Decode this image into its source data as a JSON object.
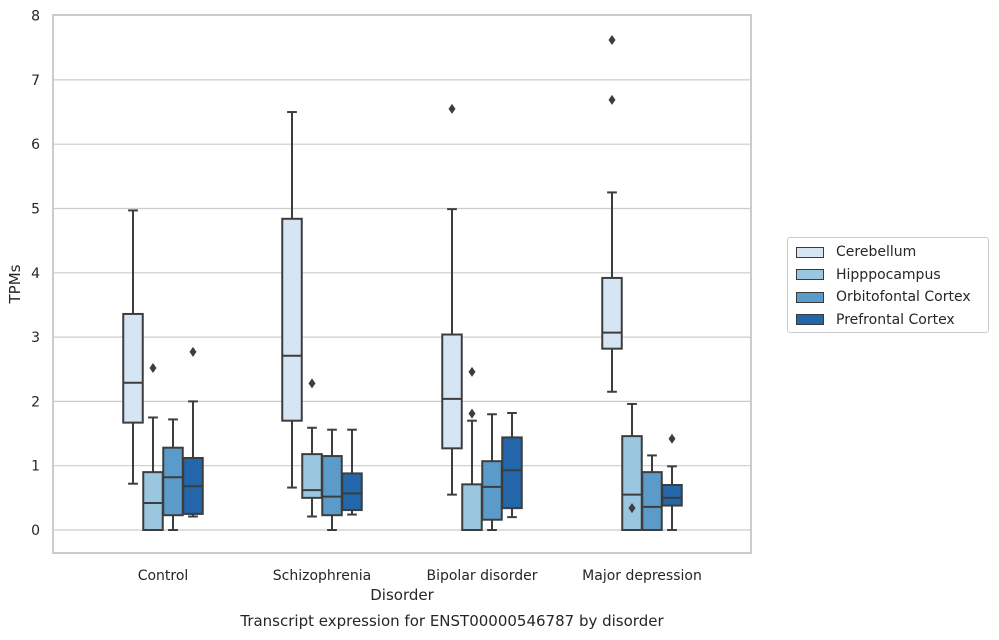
{
  "chart_data": {
    "type": "box",
    "title": "",
    "caption": "Transcript expression for ENST00000546787 by disorder",
    "xlabel": "Disorder",
    "ylabel": "TPMs",
    "ylim": [
      -0.35,
      8.0
    ],
    "yticks": [
      0,
      1,
      2,
      3,
      4,
      5,
      6,
      7,
      8
    ],
    "grid": true,
    "legend_position": "right-outside",
    "categories": [
      "Control",
      "Schizophrenia",
      "Bipolar disorder",
      "Major depression"
    ],
    "series": [
      {
        "name": "Cerebellum",
        "color": "#d6e5f4",
        "boxes": [
          {
            "whisker_low": 0.72,
            "q1": 1.67,
            "median": 2.29,
            "q3": 3.36,
            "whisker_high": 4.97,
            "outliers": []
          },
          {
            "whisker_low": 0.66,
            "q1": 1.7,
            "median": 2.71,
            "q3": 4.84,
            "whisker_high": 6.5,
            "outliers": []
          },
          {
            "whisker_low": 0.55,
            "q1": 1.27,
            "median": 2.04,
            "q3": 3.04,
            "whisker_high": 4.99,
            "outliers": [
              6.55
            ]
          },
          {
            "whisker_low": 2.15,
            "q1": 2.82,
            "median": 3.07,
            "q3": 3.92,
            "whisker_high": 5.25,
            "outliers": [
              6.69,
              7.62
            ]
          }
        ]
      },
      {
        "name": "Hipppocampus",
        "color": "#9ac6df",
        "boxes": [
          {
            "whisker_low": 0.0,
            "q1": 0.0,
            "median": 0.42,
            "q3": 0.9,
            "whisker_high": 1.75,
            "outliers": [
              2.52
            ]
          },
          {
            "whisker_low": 0.21,
            "q1": 0.5,
            "median": 0.62,
            "q3": 1.18,
            "whisker_high": 1.59,
            "outliers": [
              2.28
            ]
          },
          {
            "whisker_low": 0.0,
            "q1": 0.0,
            "median": 0.0,
            "q3": 0.71,
            "whisker_high": 1.7,
            "outliers": [
              1.81,
              2.46
            ]
          },
          {
            "whisker_low": 0.0,
            "q1": 0.0,
            "median": 0.55,
            "q3": 1.46,
            "whisker_high": 1.96,
            "outliers": [
              0.34
            ]
          }
        ]
      },
      {
        "name": "Orbitofontal Cortex",
        "color": "#5a9bc9",
        "boxes": [
          {
            "whisker_low": 0.0,
            "q1": 0.23,
            "median": 0.82,
            "q3": 1.28,
            "whisker_high": 1.72,
            "outliers": []
          },
          {
            "whisker_low": 0.0,
            "q1": 0.23,
            "median": 0.52,
            "q3": 1.15,
            "whisker_high": 1.56,
            "outliers": []
          },
          {
            "whisker_low": 0.0,
            "q1": 0.16,
            "median": 0.67,
            "q3": 1.07,
            "whisker_high": 1.8,
            "outliers": []
          },
          {
            "whisker_low": 0.0,
            "q1": 0.0,
            "median": 0.36,
            "q3": 0.9,
            "whisker_high": 1.16,
            "outliers": []
          }
        ]
      },
      {
        "name": "Prefrontal Cortex",
        "color": "#2366a9",
        "boxes": [
          {
            "whisker_low": 0.21,
            "q1": 0.25,
            "median": 0.68,
            "q3": 1.12,
            "whisker_high": 2.0,
            "outliers": [
              2.77
            ]
          },
          {
            "whisker_low": 0.24,
            "q1": 0.31,
            "median": 0.57,
            "q3": 0.88,
            "whisker_high": 1.56,
            "outliers": []
          },
          {
            "whisker_low": 0.2,
            "q1": 0.34,
            "median": 0.93,
            "q3": 1.44,
            "whisker_high": 1.82,
            "outliers": []
          },
          {
            "whisker_low": 0.0,
            "q1": 0.38,
            "median": 0.5,
            "q3": 0.7,
            "whisker_high": 0.99,
            "outliers": [
              1.42
            ]
          }
        ]
      }
    ]
  }
}
